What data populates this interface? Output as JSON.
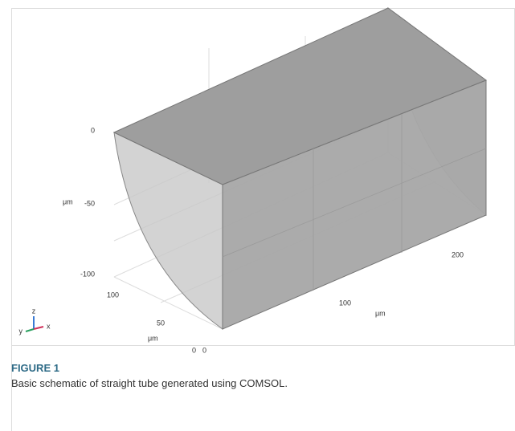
{
  "figure": {
    "z_axis": {
      "ticks": [
        "0",
        "-50",
        "-100"
      ],
      "unit": "μm"
    },
    "y_axis": {
      "ticks": [
        "100",
        "50",
        "0"
      ],
      "unit": "μm"
    },
    "x_axis": {
      "ticks": [
        "0",
        "100",
        "200"
      ],
      "unit": "μm"
    },
    "triad": [
      "z",
      "y",
      "x"
    ]
  },
  "caption": {
    "title": "FIGURE 1",
    "text": "Basic schematic of straight tube generated using COMSOL."
  }
}
